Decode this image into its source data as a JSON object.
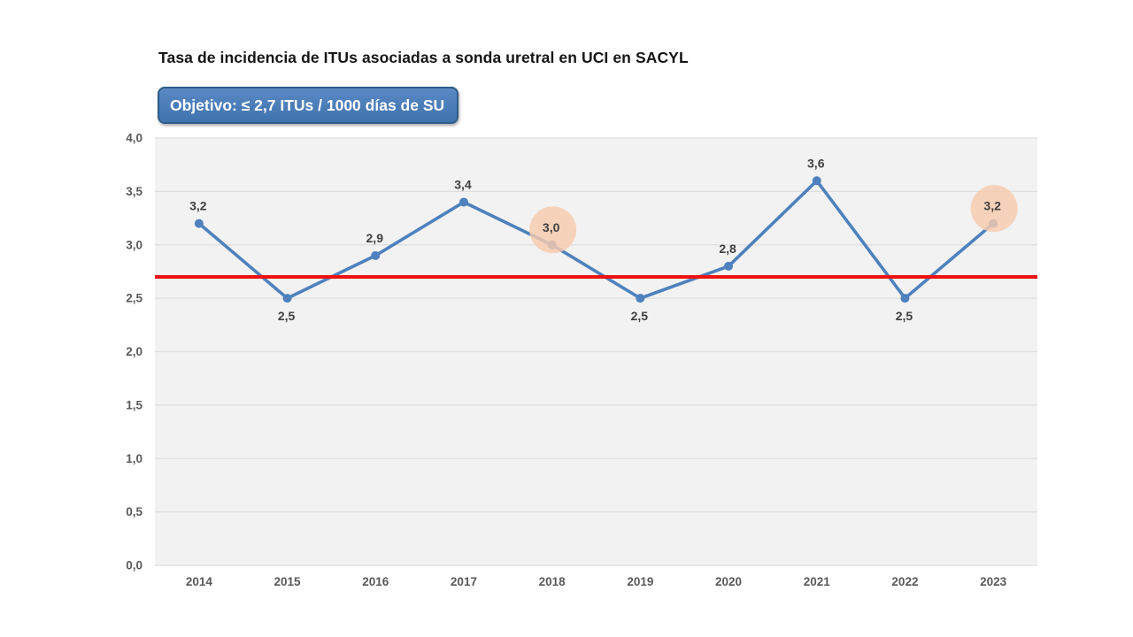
{
  "slide": {
    "title": "Tasa de incidencia de ITUs asociadas a sonda uretral en UCI en SACYL",
    "objective_label": "Objetivo: ≤ 2,7 ITUs / 1000 días de SU"
  },
  "colors": {
    "line": "#4e81bd",
    "marker": "#4e81bd",
    "target_line": "#ee1111",
    "highlight_circle": "#f8cbad",
    "plot_bg": "#f2f2f2",
    "gridline": "#dedede",
    "axis_text": "#595959",
    "data_label": "#3f3f3f",
    "objective_bg": "#4a7cb7",
    "objective_border": "#2e5c8a"
  },
  "chart_data": {
    "type": "line",
    "title": "Tasa de incidencia de ITUs asociadas a sonda uretral en UCI en SACYL",
    "categories": [
      "2014",
      "2015",
      "2016",
      "2017",
      "2018",
      "2019",
      "2020",
      "2021",
      "2022",
      "2023"
    ],
    "series": [
      {
        "name": "Tasa de incidencia de ITUs",
        "values": [
          3.2,
          2.5,
          2.9,
          3.4,
          3.0,
          2.5,
          2.8,
          3.6,
          2.5,
          3.2
        ]
      }
    ],
    "value_labels": [
      "3,2",
      "2,5",
      "2,9",
      "3,4",
      "3,0",
      "2,5",
      "2,8",
      "3,6",
      "2,5",
      "3,2"
    ],
    "label_positions": [
      "above",
      "below",
      "above",
      "above",
      "above",
      "below",
      "above",
      "above",
      "below",
      "above"
    ],
    "highlighted_categories": [
      "2018",
      "2023"
    ],
    "target_value": 2.7,
    "target_label": "Objetivo: ≤ 2,7 ITUs / 1000 días de SU",
    "xlabel": "",
    "ylabel": "",
    "ylim": [
      0.0,
      4.0
    ],
    "ytick_step": 0.5,
    "ytick_labels": [
      "0,0",
      "0,5",
      "1,0",
      "1,5",
      "2,0",
      "2,5",
      "3,0",
      "3,5",
      "4,0"
    ],
    "grid": true,
    "legend": "none"
  }
}
